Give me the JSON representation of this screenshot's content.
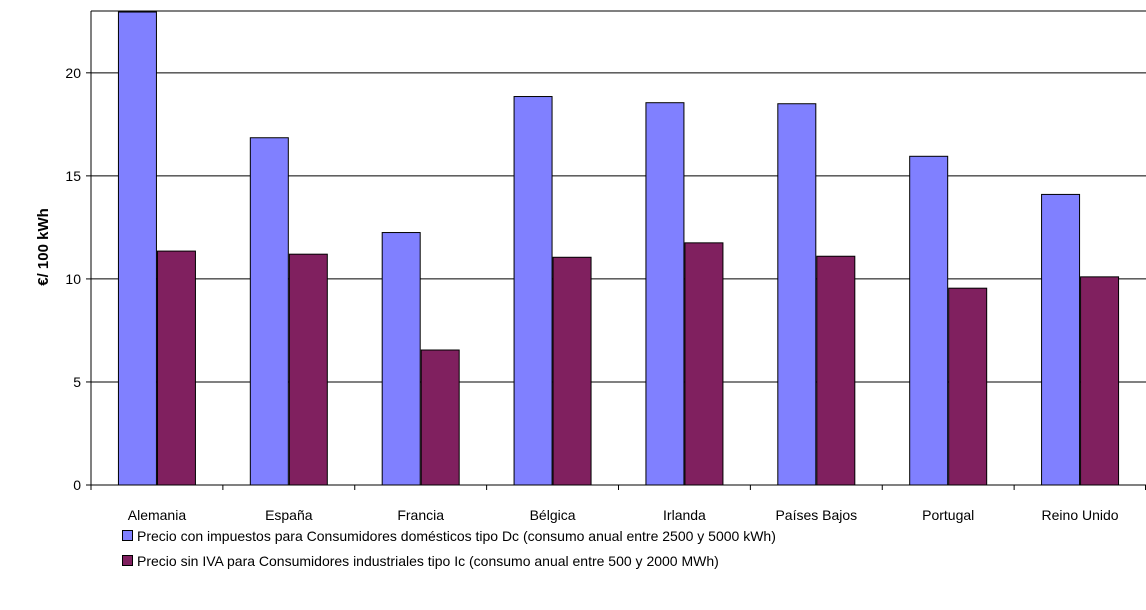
{
  "chart_data": {
    "type": "bar",
    "ylabel": "€/ 100 kWh",
    "xlabel": "",
    "ylim": [
      0,
      23
    ],
    "yticks": [
      0,
      5,
      10,
      15,
      20
    ],
    "grid": true,
    "legend_position": "bottom",
    "categories": [
      "Alemania",
      "España",
      "Francia",
      "Bélgica",
      "Irlanda",
      "Países Bajos",
      "Portugal",
      "Reino Unido"
    ],
    "series": [
      {
        "name": "Precio con impuestos para Consumidores domésticos tipo Dc (consumo anual entre 2500 y 5000 kWh)",
        "color": "#8080ff",
        "values": [
          22.95,
          16.85,
          12.25,
          18.85,
          18.55,
          18.5,
          15.95,
          14.1
        ]
      },
      {
        "name": "Precio sin IVA para Consumidores industriales tipo Ic (consumo anual entre 500 y 2000 MWh)",
        "color": "#80205f",
        "values": [
          11.35,
          11.2,
          6.55,
          11.05,
          11.75,
          11.1,
          9.55,
          10.1
        ]
      }
    ]
  }
}
